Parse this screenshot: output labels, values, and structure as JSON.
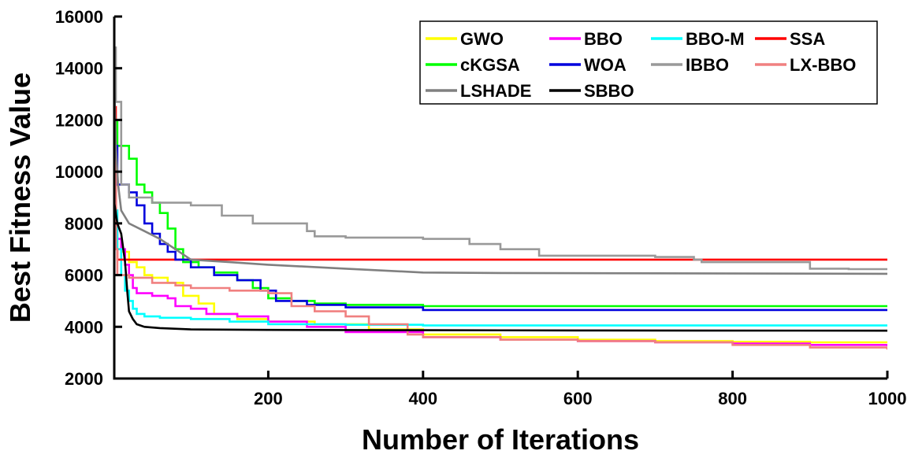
{
  "chart_data": {
    "type": "line",
    "title": "",
    "xlabel": "Number of Iterations",
    "ylabel": "Best Fitness Value",
    "xlim": [
      1,
      1000
    ],
    "ylim": [
      2000,
      16000
    ],
    "xticks": [
      200,
      400,
      600,
      800,
      1000
    ],
    "yticks": [
      2000,
      4000,
      6000,
      8000,
      10000,
      12000,
      14000,
      16000
    ],
    "grid": false,
    "legend_position": "top-right",
    "series": [
      {
        "name": "GWO",
        "color": "#ffff00",
        "step": true,
        "points": [
          [
            1,
            7600
          ],
          [
            5,
            7000
          ],
          [
            10,
            6900
          ],
          [
            20,
            6500
          ],
          [
            30,
            6300
          ],
          [
            40,
            6000
          ],
          [
            50,
            5900
          ],
          [
            70,
            5700
          ],
          [
            90,
            5200
          ],
          [
            110,
            4900
          ],
          [
            130,
            4500
          ],
          [
            160,
            4300
          ],
          [
            200,
            4200
          ],
          [
            260,
            4100
          ],
          [
            330,
            3900
          ],
          [
            400,
            3700
          ],
          [
            500,
            3600
          ],
          [
            600,
            3500
          ],
          [
            700,
            3450
          ],
          [
            800,
            3420
          ],
          [
            900,
            3400
          ],
          [
            1000,
            3380
          ]
        ]
      },
      {
        "name": "BBO",
        "color": "#ff00ff",
        "step": true,
        "points": [
          [
            1,
            8000
          ],
          [
            5,
            7400
          ],
          [
            10,
            7000
          ],
          [
            15,
            6400
          ],
          [
            20,
            6000
          ],
          [
            25,
            5500
          ],
          [
            30,
            5300
          ],
          [
            50,
            5200
          ],
          [
            70,
            5100
          ],
          [
            80,
            4800
          ],
          [
            100,
            4700
          ],
          [
            120,
            4500
          ],
          [
            160,
            4400
          ],
          [
            200,
            4200
          ],
          [
            250,
            4000
          ],
          [
            300,
            3800
          ],
          [
            400,
            3600
          ],
          [
            500,
            3500
          ],
          [
            600,
            3450
          ],
          [
            700,
            3400
          ],
          [
            800,
            3350
          ],
          [
            900,
            3300
          ],
          [
            1000,
            3250
          ]
        ]
      },
      {
        "name": "BBO-M",
        "color": "#00ffff",
        "step": true,
        "points": [
          [
            1,
            8500
          ],
          [
            5,
            7000
          ],
          [
            10,
            6000
          ],
          [
            15,
            5400
          ],
          [
            20,
            5000
          ],
          [
            25,
            4700
          ],
          [
            30,
            4500
          ],
          [
            40,
            4400
          ],
          [
            60,
            4350
          ],
          [
            100,
            4300
          ],
          [
            150,
            4200
          ],
          [
            200,
            4100
          ],
          [
            300,
            4080
          ],
          [
            400,
            4050
          ],
          [
            600,
            4050
          ],
          [
            1000,
            4050
          ]
        ]
      },
      {
        "name": "SSA",
        "color": "#ff0000",
        "step": true,
        "points": [
          [
            1,
            12500
          ],
          [
            3,
            7000
          ],
          [
            5,
            6600
          ],
          [
            1000,
            6600
          ]
        ]
      },
      {
        "name": "cKGSA",
        "color": "#00ff00",
        "step": true,
        "points": [
          [
            1,
            12000
          ],
          [
            5,
            11000
          ],
          [
            20,
            10500
          ],
          [
            30,
            9500
          ],
          [
            40,
            9200
          ],
          [
            50,
            8800
          ],
          [
            60,
            8400
          ],
          [
            70,
            7800
          ],
          [
            80,
            7000
          ],
          [
            90,
            6500
          ],
          [
            110,
            6300
          ],
          [
            130,
            6100
          ],
          [
            160,
            5800
          ],
          [
            180,
            5500
          ],
          [
            200,
            5100
          ],
          [
            230,
            5000
          ],
          [
            260,
            4900
          ],
          [
            300,
            4850
          ],
          [
            400,
            4800
          ],
          [
            1000,
            4800
          ]
        ]
      },
      {
        "name": "WOA",
        "color": "#0000dd",
        "step": true,
        "points": [
          [
            1,
            11000
          ],
          [
            5,
            9500
          ],
          [
            20,
            9200
          ],
          [
            30,
            8700
          ],
          [
            40,
            8000
          ],
          [
            50,
            7600
          ],
          [
            60,
            7200
          ],
          [
            70,
            6900
          ],
          [
            80,
            6600
          ],
          [
            100,
            6300
          ],
          [
            130,
            6000
          ],
          [
            160,
            5800
          ],
          [
            190,
            5400
          ],
          [
            210,
            5000
          ],
          [
            250,
            4850
          ],
          [
            300,
            4750
          ],
          [
            400,
            4650
          ],
          [
            1000,
            4650
          ]
        ]
      },
      {
        "name": "IBBO",
        "color": "#999999",
        "step": true,
        "points": [
          [
            1,
            14800
          ],
          [
            3,
            12700
          ],
          [
            10,
            9500
          ],
          [
            20,
            9000
          ],
          [
            50,
            8800
          ],
          [
            100,
            8700
          ],
          [
            140,
            8300
          ],
          [
            180,
            8000
          ],
          [
            250,
            7700
          ],
          [
            260,
            7500
          ],
          [
            300,
            7450
          ],
          [
            400,
            7400
          ],
          [
            460,
            7200
          ],
          [
            500,
            7000
          ],
          [
            550,
            6750
          ],
          [
            700,
            6700
          ],
          [
            750,
            6600
          ],
          [
            760,
            6500
          ],
          [
            900,
            6250
          ],
          [
            950,
            6230
          ],
          [
            1000,
            6200
          ]
        ]
      },
      {
        "name": "LX-BBO",
        "color": "#f08080",
        "step": true,
        "points": [
          [
            1,
            10500
          ],
          [
            3,
            7000
          ],
          [
            5,
            6000
          ],
          [
            20,
            5900
          ],
          [
            50,
            5700
          ],
          [
            80,
            5600
          ],
          [
            100,
            5500
          ],
          [
            150,
            5400
          ],
          [
            200,
            5300
          ],
          [
            230,
            4800
          ],
          [
            260,
            4600
          ],
          [
            300,
            4400
          ],
          [
            330,
            4100
          ],
          [
            380,
            3700
          ],
          [
            400,
            3600
          ],
          [
            500,
            3500
          ],
          [
            600,
            3450
          ],
          [
            700,
            3400
          ],
          [
            800,
            3300
          ],
          [
            900,
            3200
          ],
          [
            1000,
            3120
          ]
        ]
      },
      {
        "name": "LSHADE",
        "color": "#808080",
        "step": false,
        "points": [
          [
            1,
            13500
          ],
          [
            3,
            11000
          ],
          [
            6,
            9500
          ],
          [
            10,
            8500
          ],
          [
            20,
            8000
          ],
          [
            40,
            7700
          ],
          [
            60,
            7400
          ],
          [
            80,
            7000
          ],
          [
            100,
            6600
          ],
          [
            150,
            6500
          ],
          [
            200,
            6400
          ],
          [
            300,
            6250
          ],
          [
            400,
            6100
          ],
          [
            500,
            6080
          ],
          [
            700,
            6070
          ],
          [
            1000,
            6050
          ]
        ]
      },
      {
        "name": "SBBO",
        "color": "#000000",
        "step": false,
        "points": [
          [
            1,
            8800
          ],
          [
            5,
            8000
          ],
          [
            10,
            7600
          ],
          [
            15,
            6500
          ],
          [
            18,
            5300
          ],
          [
            20,
            4600
          ],
          [
            25,
            4300
          ],
          [
            30,
            4100
          ],
          [
            40,
            4000
          ],
          [
            60,
            3950
          ],
          [
            100,
            3900
          ],
          [
            200,
            3880
          ],
          [
            400,
            3870
          ],
          [
            600,
            3860
          ],
          [
            1000,
            3850
          ]
        ]
      }
    ]
  }
}
